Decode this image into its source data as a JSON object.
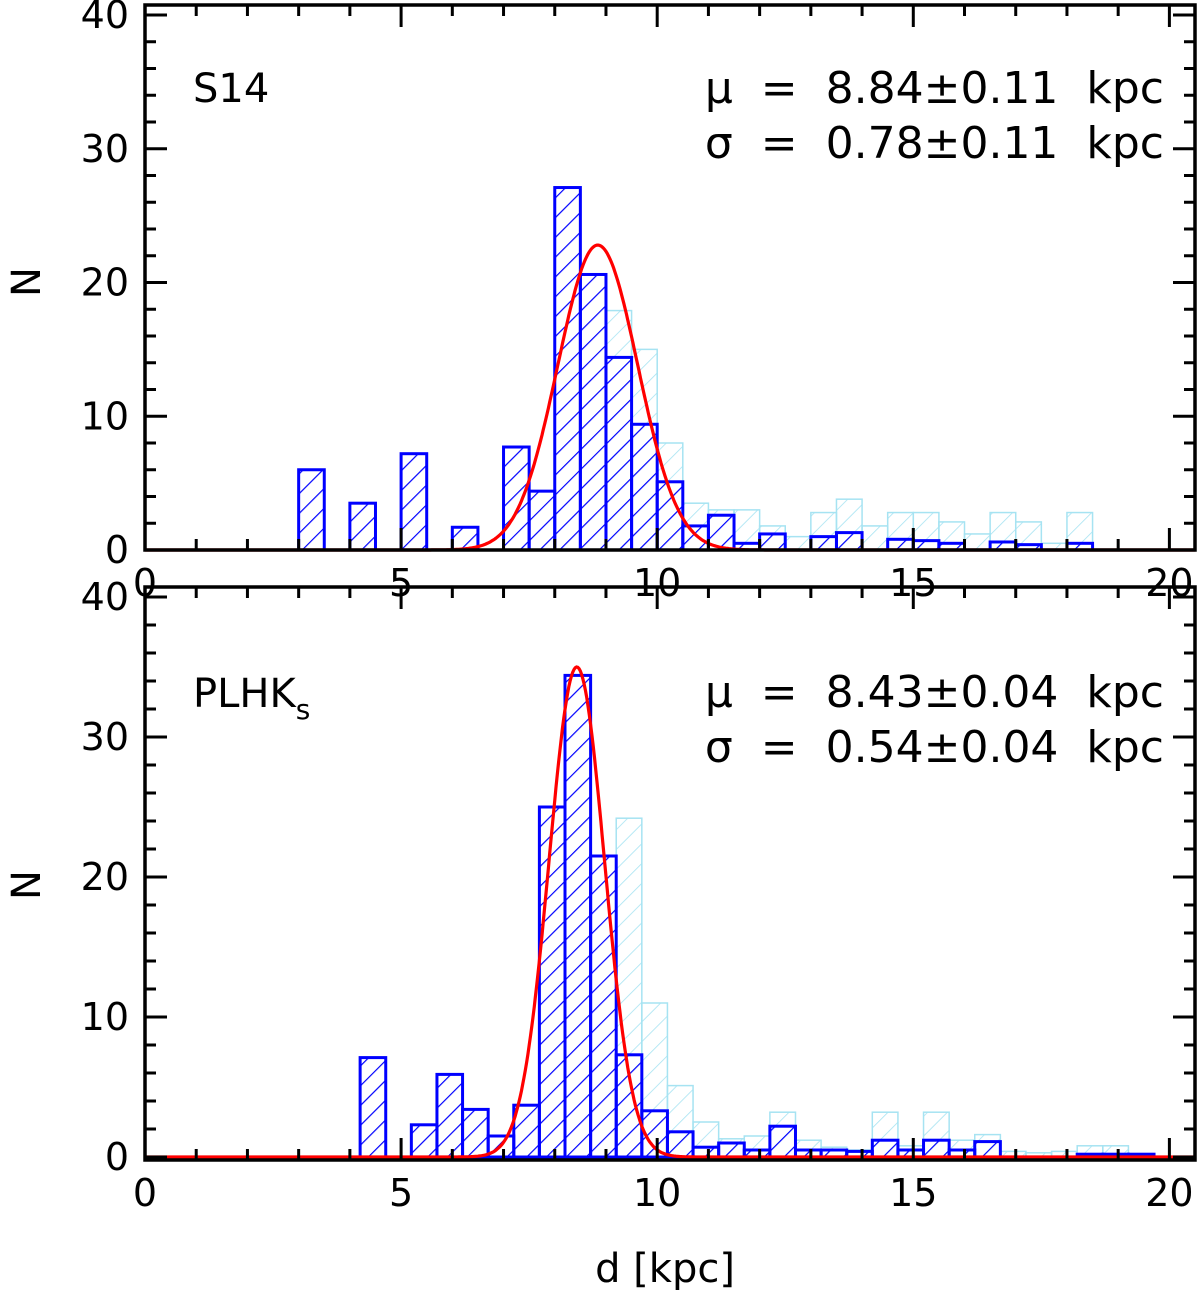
{
  "colors": {
    "histogram": "#0000ff",
    "comparison_histogram": "#a6e3f2",
    "fit": "#ff0000",
    "axes": "#000000"
  },
  "chart_data": [
    {
      "type": "bar",
      "panel_label": "S14",
      "panel_label_subscript": "",
      "stats": {
        "mu_line": "μ  =  8.84±0.11  kpc",
        "sigma_line": "σ  =  0.78±0.11  kpc"
      },
      "xlabel": "",
      "ylabel": "N",
      "xlim": [
        0,
        20.5
      ],
      "ylim": [
        0,
        40
      ],
      "xticks": [
        "0",
        "5",
        "10",
        "15",
        "20"
      ],
      "yticks": [
        "0",
        "10",
        "20",
        "30",
        "40"
      ],
      "bin_width": 0.5,
      "series": [
        {
          "style": "hatched",
          "bin_edges": [
            3.0,
            3.5,
            4.0,
            4.5,
            5.0,
            5.5,
            6.0,
            6.5,
            7.0,
            7.5,
            8.0,
            8.5,
            9.0,
            9.5,
            10.0,
            10.5,
            11.0,
            11.5,
            12.0,
            12.5,
            13.0,
            13.5,
            14.0,
            14.5,
            15.0,
            15.5,
            16.0,
            16.5,
            17.0,
            17.5,
            18.0,
            18.5
          ],
          "counts": [
            6,
            0,
            3.5,
            0,
            7.2,
            0,
            1.7,
            0,
            7.7,
            4.4,
            27.1,
            20.6,
            14.4,
            9.4,
            5.1,
            1.8,
            2.6,
            0.5,
            1.2,
            0,
            1.0,
            1.3,
            0,
            0.8,
            0.7,
            0.5,
            0,
            0.6,
            0.4,
            0,
            0.5
          ]
        },
        {
          "style": "faint",
          "bin_edges": [
            9.0,
            9.5,
            10.0,
            10.5,
            11.0,
            11.5,
            12.0,
            12.5,
            13.0,
            13.5,
            14.0,
            14.5,
            15.0,
            15.5,
            16.0,
            16.5,
            17.0,
            17.5,
            18.0,
            18.5
          ],
          "counts": [
            17.9,
            15.0,
            8.0,
            3.5,
            3.0,
            3.0,
            1.8,
            1.0,
            2.8,
            3.8,
            1.8,
            2.8,
            2.8,
            2.1,
            1.2,
            2.8,
            2.1,
            0.5,
            2.8
          ]
        }
      ],
      "fit": {
        "type": "gaussian",
        "mu": 8.84,
        "sigma": 0.78,
        "peak": 22.8
      }
    },
    {
      "type": "bar",
      "panel_label": "PLHK",
      "panel_label_subscript": "s",
      "stats": {
        "mu_line": "μ  =  8.43±0.04  kpc",
        "sigma_line": "σ  =  0.54±0.04  kpc"
      },
      "xlabel": "d [kpc]",
      "ylabel": "N",
      "xlim": [
        0,
        20.5
      ],
      "ylim": [
        0,
        40
      ],
      "xticks": [
        "0",
        "5",
        "10",
        "15",
        "20"
      ],
      "yticks": [
        "0",
        "10",
        "20",
        "30",
        "40"
      ],
      "bin_width": 0.5,
      "series": [
        {
          "style": "hatched",
          "bin_edges": [
            4.2,
            4.7,
            5.2,
            5.7,
            6.2,
            6.7,
            7.2,
            7.7,
            8.2,
            8.7,
            9.2,
            9.7,
            10.2,
            10.7,
            11.2,
            11.7,
            12.2,
            12.7,
            13.2,
            13.7,
            14.2,
            14.7,
            15.2,
            15.7,
            16.2,
            16.7,
            17.2,
            17.7,
            18.2,
            18.7,
            19.2
          ],
          "counts": [
            7.1,
            0,
            2.3,
            5.9,
            3.4,
            1.5,
            3.7,
            25.0,
            34.4,
            21.5,
            7.3,
            3.3,
            1.8,
            0.7,
            1.0,
            0.5,
            2.2,
            0.5,
            0.5,
            0.4,
            1.2,
            0.5,
            1.2,
            0.5,
            1.1,
            0,
            0,
            0,
            0.2,
            0.2,
            0.2
          ]
        },
        {
          "style": "faint",
          "bin_edges": [
            9.2,
            9.7,
            10.2,
            10.7,
            11.2,
            11.7,
            12.2,
            12.7,
            13.2,
            13.7,
            14.2,
            14.7,
            15.2,
            15.7,
            16.2,
            16.7,
            17.2,
            17.7,
            18.2,
            18.7,
            19.2
          ],
          "counts": [
            24.2,
            11.0,
            5.1,
            2.5,
            1.3,
            1.5,
            3.2,
            1.2,
            0.7,
            0.5,
            3.2,
            0.8,
            3.2,
            1.2,
            1.6,
            0.4,
            0.3,
            0.4,
            0.8,
            0.8
          ]
        }
      ],
      "fit": {
        "type": "gaussian",
        "mu": 8.43,
        "sigma": 0.54,
        "peak": 35.0
      }
    }
  ]
}
